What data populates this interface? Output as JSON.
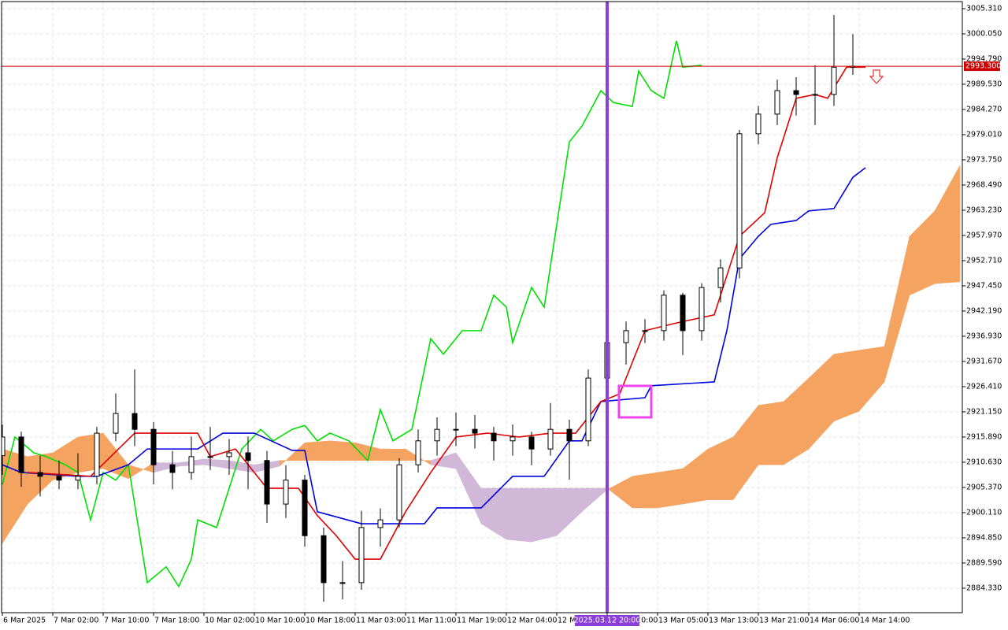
{
  "chart_data": {
    "type": "candlestick",
    "xlim": [
      0,
      152
    ],
    "ylim": [
      2879.23,
      3006.79
    ],
    "grid": true,
    "xticks": [
      {
        "value": 0,
        "label": "6 Mar 2025"
      },
      {
        "value": 8,
        "label": "7 Mar 02:00"
      },
      {
        "value": 16,
        "label": "7 Mar 10:00"
      },
      {
        "value": 24,
        "label": "7 Mar 18:00"
      },
      {
        "value": 32,
        "label": "10 Mar 02:00"
      },
      {
        "value": 40,
        "label": "10 Mar 10:00"
      },
      {
        "value": 48,
        "label": "10 Mar 18:00"
      },
      {
        "value": 56,
        "label": "11 Mar 03:00"
      },
      {
        "value": 64,
        "label": "11 Mar 11:00"
      },
      {
        "value": 72,
        "label": "11 Mar 19:00"
      },
      {
        "value": 80,
        "label": "12 Mar 04:00"
      },
      {
        "value": 88,
        "label": "12 Mar 12:00"
      },
      {
        "value": 96,
        "label": "12 Mar 20:00"
      },
      {
        "value": 104,
        "label": "13 Mar 05:00"
      },
      {
        "value": 112,
        "label": "13 Mar 13:00"
      },
      {
        "value": 120,
        "label": "13 Mar 21:00"
      },
      {
        "value": 128,
        "label": "14 Mar 06:00"
      },
      {
        "value": 136,
        "label": "14 Mar 14:00"
      }
    ],
    "yticks": [
      {
        "value": 3005.31,
        "label": "3005.310"
      },
      {
        "value": 3000.05,
        "label": "3000.050"
      },
      {
        "value": 2994.79,
        "label": "2994.790"
      },
      {
        "value": 2989.53,
        "label": "2989.530"
      },
      {
        "value": 2984.27,
        "label": "2984.270"
      },
      {
        "value": 2979.01,
        "label": "2979.010"
      },
      {
        "value": 2973.75,
        "label": "2973.750"
      },
      {
        "value": 2968.49,
        "label": "2968.490"
      },
      {
        "value": 2963.23,
        "label": "2963.230"
      },
      {
        "value": 2957.97,
        "label": "2957.970"
      },
      {
        "value": 2952.71,
        "label": "2952.710"
      },
      {
        "value": 2947.45,
        "label": "2947.450"
      },
      {
        "value": 2942.19,
        "label": "2942.190"
      },
      {
        "value": 2936.93,
        "label": "2936.930"
      },
      {
        "value": 2931.67,
        "label": "2931.670"
      },
      {
        "value": 2926.41,
        "label": "2926.410"
      },
      {
        "value": 2921.15,
        "label": "2921.150"
      },
      {
        "value": 2915.89,
        "label": "2915.890"
      },
      {
        "value": 2910.63,
        "label": "2910.630"
      },
      {
        "value": 2905.37,
        "label": "2905.370"
      },
      {
        "value": 2900.11,
        "label": "2900.110"
      },
      {
        "value": 2894.85,
        "label": "2894.850"
      },
      {
        "value": 2889.59,
        "label": "2889.590"
      },
      {
        "value": 2884.33,
        "label": "2884.330"
      }
    ],
    "cloud": {
      "bull_color": "#f4a460",
      "bear_color": "#d2b8d8",
      "x": [
        0,
        4,
        8,
        12,
        16,
        20,
        24,
        28,
        32,
        36,
        40,
        44,
        48,
        52,
        56,
        60,
        64,
        68,
        72,
        76,
        80,
        84,
        88,
        92,
        96,
        100,
        104,
        108,
        112,
        116,
        120,
        124,
        128,
        132,
        136,
        140,
        144,
        148,
        152
      ],
      "span_a": [
        2913.4,
        2911.8,
        2912.6,
        2915.9,
        2916.7,
        2910.1,
        2908.5,
        2909.8,
        2910.1,
        2909.3,
        2908.5,
        2909.8,
        2914.7,
        2915.1,
        2914.7,
        2913.4,
        2913.4,
        2910.1,
        2909.3,
        2897.8,
        2894.5,
        2894.0,
        2895.3,
        2900.3,
        2904.9,
        2907.7,
        2908.5,
        2909.3,
        2913.4,
        2915.9,
        2922.5,
        2923.3,
        2928.2,
        2933.2,
        2934.0,
        2934.8,
        2957.8,
        2963.1,
        2972.6
      ],
      "span_b": [
        2893.7,
        2901.9,
        2906.9,
        2908.5,
        2909.3,
        2907.2,
        2910.5,
        2910.5,
        2911.3,
        2911.0,
        2910.1,
        2911.0,
        2911.0,
        2911.0,
        2911.0,
        2911.0,
        2911.0,
        2911.0,
        2912.6,
        2905.2,
        2905.2,
        2905.2,
        2905.2,
        2905.2,
        2905.2,
        2901.1,
        2901.1,
        2901.9,
        2902.8,
        2902.8,
        2910.1,
        2910.1,
        2913.4,
        2919.2,
        2921.3,
        2927.4,
        2945.5,
        2947.9,
        2948.3
      ]
    },
    "lines": [
      {
        "color": "#00e000",
        "x": [
          0,
          2,
          5,
          7,
          10,
          12,
          14,
          16,
          18,
          20,
          23,
          26,
          28,
          30,
          31,
          34,
          36,
          38,
          41,
          43,
          46,
          48,
          50,
          52,
          55,
          58,
          60,
          62,
          65,
          68,
          70,
          73,
          76,
          78,
          80,
          81,
          84,
          86,
          90,
          92,
          95,
          97,
          100,
          101,
          103,
          105,
          107,
          108,
          111
        ],
        "values": [
          2906.0,
          2915.9,
          2912.6,
          2911.8,
          2910.1,
          2908.5,
          2898.6,
          2908.5,
          2906.9,
          2910.1,
          2885.5,
          2888.8,
          2884.7,
          2890.4,
          2898.6,
          2897.0,
          2905.2,
          2913.4,
          2917.5,
          2915.1,
          2917.5,
          2918.3,
          2915.1,
          2916.7,
          2915.1,
          2911.0,
          2921.6,
          2915.1,
          2917.5,
          2936.4,
          2933.2,
          2938.1,
          2938.1,
          2945.5,
          2943.0,
          2935.6,
          2947.1,
          2943.0,
          2977.5,
          2980.8,
          2988.2,
          2985.7,
          2984.9,
          2992.3,
          2988.2,
          2986.6,
          2998.6,
          2993.1,
          2993.5
        ]
      },
      {
        "color": "#0000dd",
        "x": [
          0,
          3,
          12,
          15,
          20,
          23,
          31,
          35,
          40,
          46,
          48,
          50,
          57,
          67,
          69,
          76,
          81,
          86,
          90,
          92,
          95,
          102,
          103,
          113,
          115,
          117,
          120,
          122,
          126,
          128,
          132,
          135,
          137
        ],
        "values": [
          2910.1,
          2908.5,
          2907.7,
          2907.7,
          2910.1,
          2913.4,
          2913.4,
          2916.7,
          2916.7,
          2913.1,
          2913.1,
          2900.3,
          2897.8,
          2897.8,
          2901.1,
          2901.1,
          2907.7,
          2907.7,
          2915.1,
          2915.1,
          2923.3,
          2924.1,
          2926.6,
          2927.4,
          2938.1,
          2953.1,
          2957.8,
          2960.3,
          2961.1,
          2963.1,
          2963.6,
          2970.1,
          2972.1
        ]
      },
      {
        "color": "#e00000",
        "x": [
          4,
          14,
          21,
          31,
          33,
          37,
          42,
          47,
          50,
          53,
          56,
          60,
          64,
          68,
          72,
          77,
          82,
          87,
          91,
          95,
          98,
          102,
          107,
          113,
          117,
          121,
          123,
          126,
          129,
          131,
          134,
          137
        ],
        "values": [
          2908.5,
          2907.7,
          2916.7,
          2916.7,
          2911.8,
          2913.4,
          2905.2,
          2905.2,
          2899.5,
          2895.3,
          2890.4,
          2890.4,
          2900.3,
          2908.5,
          2915.9,
          2916.7,
          2915.9,
          2916.7,
          2916.7,
          2923.3,
          2924.9,
          2938.1,
          2939.7,
          2941.4,
          2957.8,
          2962.7,
          2974.2,
          2986.6,
          2987.4,
          2986.6,
          2993.1,
          2993.1
        ]
      }
    ],
    "candles": {
      "up_color": "#ffffff",
      "down_color": "#000000",
      "x": [
        0,
        3,
        6,
        9,
        12,
        15,
        18,
        21,
        24,
        27,
        30,
        33,
        36,
        39,
        42,
        45,
        48,
        51,
        54,
        57,
        60,
        63,
        66,
        69,
        72,
        75,
        78,
        81,
        84,
        87,
        90,
        93,
        96,
        99,
        102,
        105,
        108,
        111,
        114,
        117,
        120,
        123,
        126,
        129,
        132,
        135
      ],
      "ohlc": [
        [
          2912.0,
          2918.5,
          2908.0,
          2915.9
        ],
        [
          2915.9,
          2917.0,
          2905.5,
          2908.5
        ],
        [
          2908.5,
          2912.0,
          2903.5,
          2907.7
        ],
        [
          2907.7,
          2911.0,
          2905.0,
          2906.9
        ],
        [
          2906.9,
          2912.5,
          2905.0,
          2907.7
        ],
        [
          2907.7,
          2918.0,
          2906.0,
          2916.7
        ],
        [
          2916.7,
          2925.0,
          2915.0,
          2920.8
        ],
        [
          2920.8,
          2930.0,
          2914.0,
          2917.5
        ],
        [
          2917.5,
          2919.0,
          2906.0,
          2910.1
        ],
        [
          2910.1,
          2913.0,
          2905.0,
          2908.5
        ],
        [
          2908.5,
          2916.0,
          2907.0,
          2911.8
        ],
        [
          2911.8,
          2918.0,
          2909.0,
          2911.8
        ],
        [
          2911.8,
          2915.5,
          2908.0,
          2912.6
        ],
        [
          2912.6,
          2916.0,
          2905.0,
          2911.0
        ],
        [
          2911.0,
          2913.0,
          2898.0,
          2901.9
        ],
        [
          2901.9,
          2910.0,
          2899.0,
          2906.9
        ],
        [
          2906.9,
          2908.0,
          2893.0,
          2895.3
        ],
        [
          2895.3,
          2897.0,
          2881.5,
          2885.5
        ],
        [
          2885.5,
          2890.0,
          2882.0,
          2885.5
        ],
        [
          2885.5,
          2900.5,
          2884.0,
          2897.0
        ],
        [
          2897.0,
          2901.0,
          2893.0,
          2898.6
        ],
        [
          2898.6,
          2911.5,
          2897.0,
          2910.1
        ],
        [
          2910.1,
          2917.5,
          2908.5,
          2915.1
        ],
        [
          2915.1,
          2920.0,
          2912.0,
          2917.5
        ],
        [
          2917.5,
          2921.0,
          2914.0,
          2917.5
        ],
        [
          2917.5,
          2920.5,
          2913.5,
          2916.7
        ],
        [
          2916.7,
          2918.0,
          2911.0,
          2915.1
        ],
        [
          2915.1,
          2918.5,
          2912.0,
          2915.9
        ],
        [
          2915.9,
          2917.0,
          2910.0,
          2913.4
        ],
        [
          2913.4,
          2923.0,
          2912.0,
          2917.5
        ],
        [
          2917.5,
          2919.5,
          2907.0,
          2915.1
        ],
        [
          2915.1,
          2930.0,
          2914.0,
          2928.2
        ],
        [
          2928.2,
          2941.0,
          2926.0,
          2935.6
        ],
        [
          2935.6,
          2940.0,
          2931.0,
          2938.1
        ],
        [
          2938.1,
          2940.5,
          2935.5,
          2938.1
        ],
        [
          2938.1,
          2946.5,
          2936.0,
          2945.5
        ],
        [
          2945.5,
          2946.0,
          2933.0,
          2938.1
        ],
        [
          2938.1,
          2948.0,
          2936.0,
          2947.1
        ],
        [
          2947.1,
          2953.0,
          2944.0,
          2951.2
        ],
        [
          2951.2,
          2980.0,
          2949.0,
          2979.2
        ],
        [
          2979.2,
          2985.0,
          2977.0,
          2983.3
        ],
        [
          2983.3,
          2990.5,
          2981.0,
          2988.2
        ],
        [
          2988.2,
          2991.0,
          2983.0,
          2987.4
        ],
        [
          2987.4,
          2993.5,
          2981.0,
          2987.4
        ],
        [
          2987.4,
          3004.0,
          2985.0,
          2993.1
        ],
        [
          2993.1,
          3000.0,
          2991.5,
          2993.3
        ]
      ]
    },
    "price_line": {
      "value": 2993.3,
      "label": "2993.300",
      "color": "#cc0000"
    },
    "cursor": {
      "x": 96,
      "label": "2025.03.12 20:00",
      "color": "#8b3fd6"
    }
  }
}
